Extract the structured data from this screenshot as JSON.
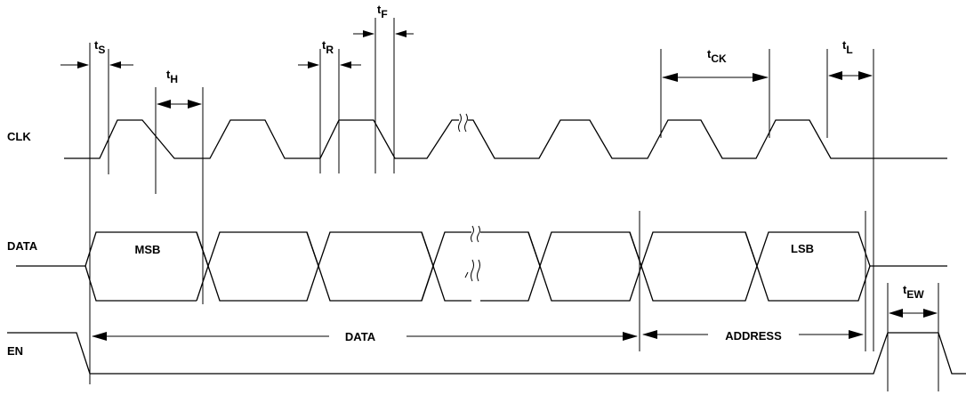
{
  "signals": {
    "clk": "CLK",
    "data": "DATA",
    "en": "EN"
  },
  "timing": {
    "ts": {
      "main": "t",
      "sub": "S"
    },
    "th": {
      "main": "t",
      "sub": "H"
    },
    "tr": {
      "main": "t",
      "sub": "R"
    },
    "tf": {
      "main": "t",
      "sub": "F"
    },
    "tck": {
      "main": "t",
      "sub": "CK"
    },
    "tl": {
      "main": "t",
      "sub": "L"
    },
    "tew": {
      "main": "t",
      "sub": "EW"
    }
  },
  "bits": {
    "first": "MSB",
    "last": "LSB"
  },
  "spans": {
    "data": "DATA",
    "address": "ADDRESS"
  }
}
